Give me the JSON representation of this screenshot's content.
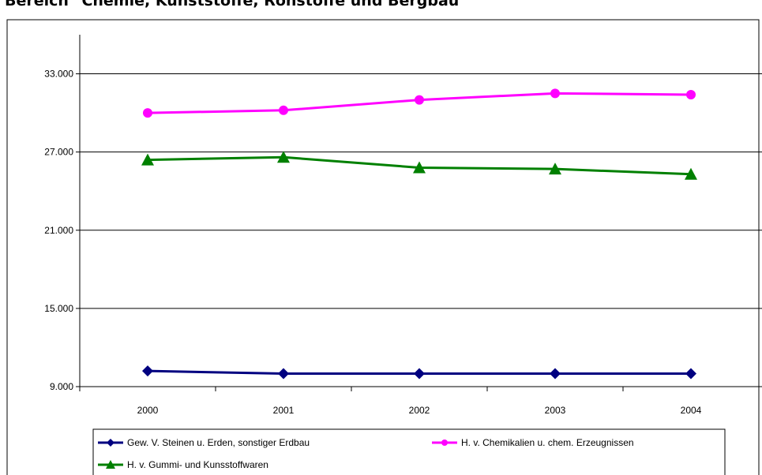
{
  "title": "Bereich \"Chemie, Kunststoffe, Rohstoffe und Bergbau\"",
  "chart_data": {
    "type": "line",
    "categories": [
      "2000",
      "2001",
      "2002",
      "2003",
      "2004"
    ],
    "ylim": [
      9000,
      36000
    ],
    "yticks": [
      9000,
      15000,
      21000,
      27000,
      33000
    ],
    "ytick_labels": [
      "9.000",
      "15.000",
      "21.000",
      "27.000",
      "33.000"
    ],
    "grid": "horizontal",
    "legend_position": "bottom",
    "series": [
      {
        "name": "Gew. V. Steinen u. Erden, sonstiger Erdbau",
        "color": "#000080",
        "marker": "diamond",
        "values": [
          10200,
          10000,
          10000,
          10000,
          10000
        ]
      },
      {
        "name": "H. v. Chemikalien u. chem. Erzeugnissen",
        "color": "#FF00FF",
        "marker": "circle",
        "values": [
          30000,
          30200,
          31000,
          31500,
          31400
        ]
      },
      {
        "name": "H. v. Gummi- und Kunsstoffwaren",
        "color": "#008000",
        "marker": "triangle",
        "values": [
          26400,
          26600,
          25800,
          25700,
          25300
        ]
      }
    ]
  }
}
